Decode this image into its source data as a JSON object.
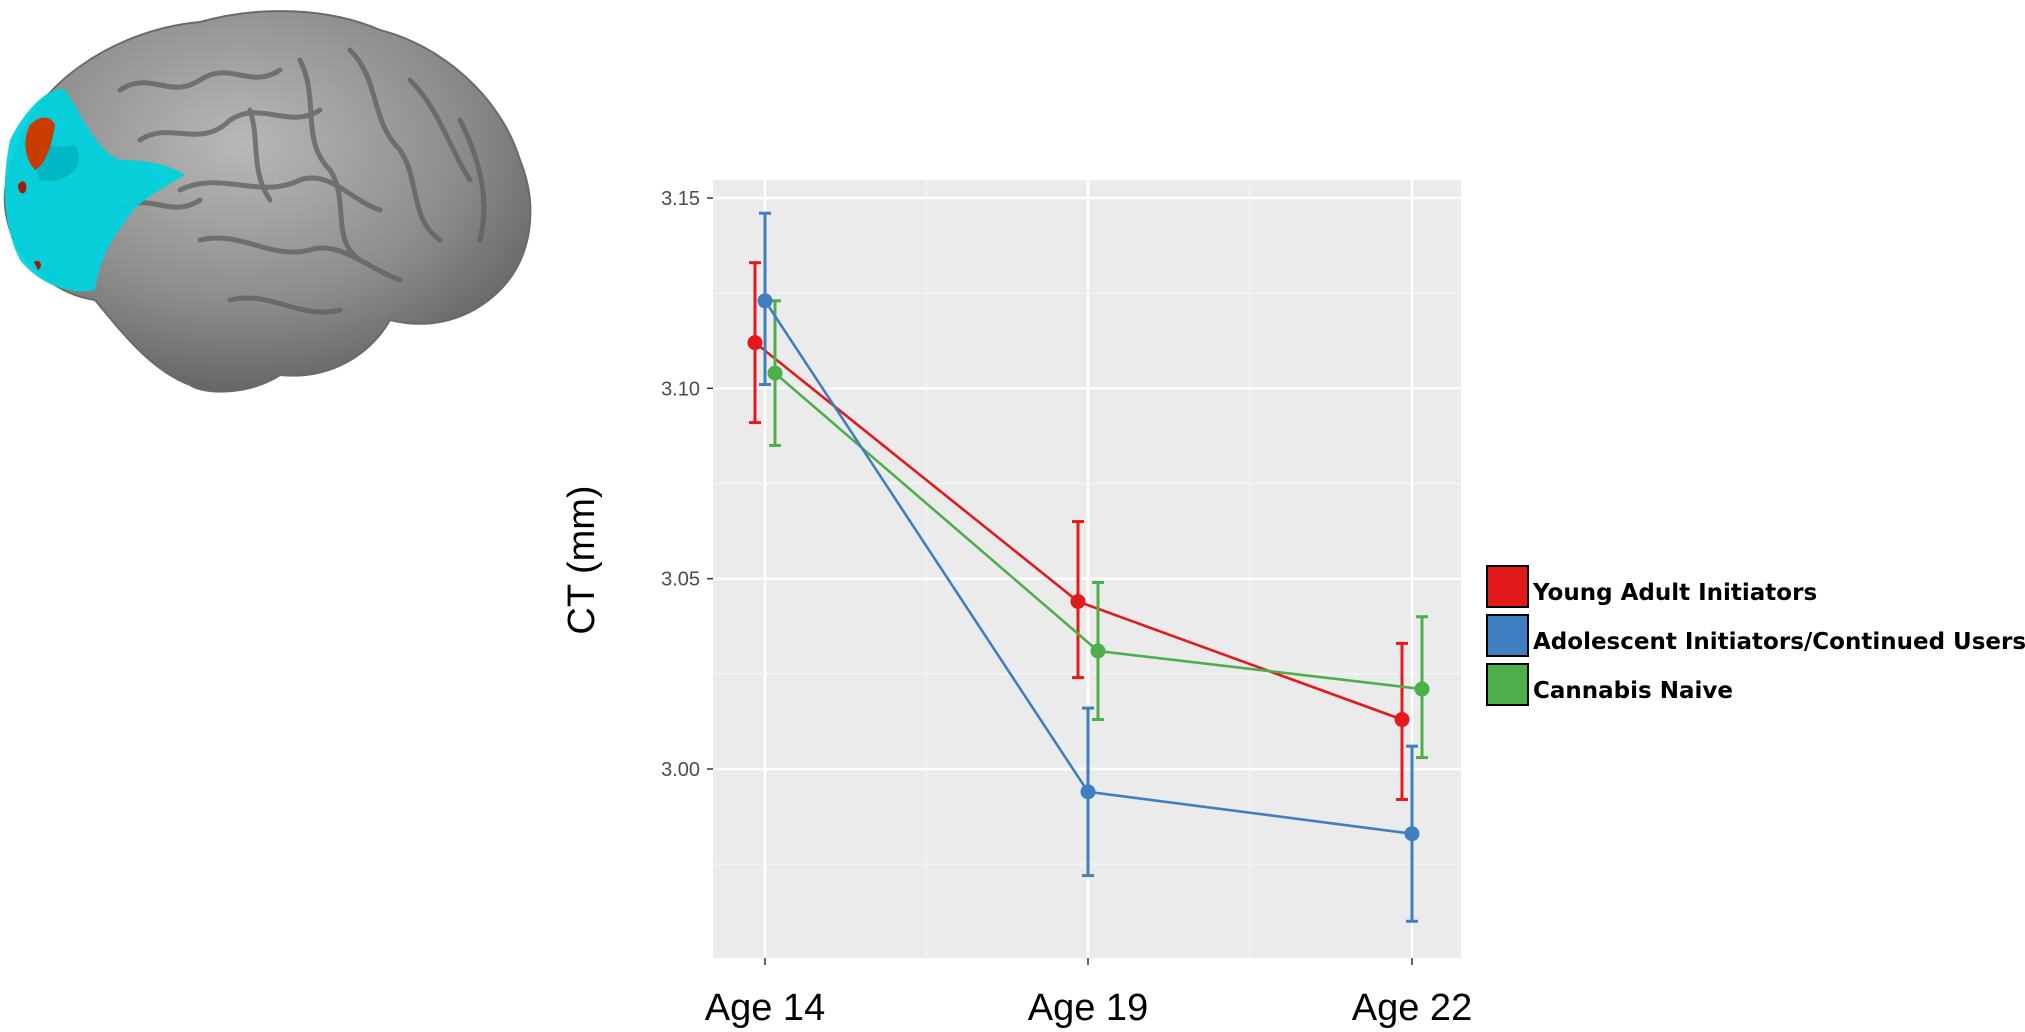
{
  "chart_data": {
    "type": "line",
    "title": "",
    "xlabel": "",
    "ylabel": "CT (mm)",
    "categories": [
      "Age 14",
      "Age 19",
      "Age 22"
    ],
    "ylim": [
      2.95,
      3.155
    ],
    "yticks": [
      3.0,
      3.05,
      3.1,
      3.15
    ],
    "ytick_labels": [
      "3.00",
      "3.05",
      "3.10",
      "3.15"
    ],
    "grid": true,
    "legend_position": "right",
    "error_bars": true,
    "series": [
      {
        "name": "Young Adult Initiators",
        "color": "#e31a1c",
        "values": [
          3.112,
          3.044,
          3.013
        ],
        "lower": [
          3.091,
          3.024,
          2.992
        ],
        "upper": [
          3.133,
          3.065,
          3.033
        ]
      },
      {
        "name": "Adolescent Initiators/Continued Users",
        "color": "#3f7fc1",
        "values": [
          3.123,
          2.994,
          2.983
        ],
        "lower": [
          3.101,
          2.972,
          2.96
        ],
        "upper": [
          3.146,
          3.016,
          3.006
        ]
      },
      {
        "name": "Cannabis Naive",
        "color": "#4daf4a",
        "values": [
          3.104,
          3.031,
          3.021
        ],
        "lower": [
          3.085,
          3.013,
          3.003
        ],
        "upper": [
          3.123,
          3.049,
          3.04
        ]
      }
    ]
  },
  "brain_image": {
    "icon": "brain-cortex-icon",
    "colors": {
      "surface": "#8c8c8c",
      "highlight": "#00d2dc",
      "accent": "#c83c00"
    }
  }
}
